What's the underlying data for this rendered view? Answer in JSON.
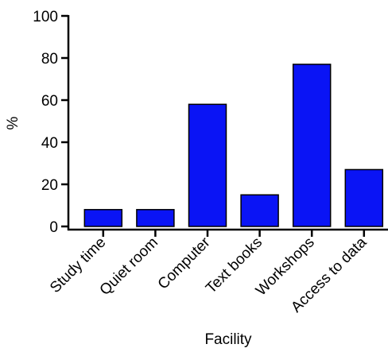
{
  "chart_data": {
    "type": "bar",
    "categories": [
      "Study time",
      "Quiet room",
      "Computer",
      "Text books",
      "Workshops",
      "Access to data"
    ],
    "values": [
      8,
      8,
      58,
      15,
      77,
      27
    ],
    "xlabel": "Facility",
    "ylabel": "%",
    "ylim": [
      0,
      100
    ],
    "yticks": [
      0,
      20,
      40,
      60,
      80,
      100
    ],
    "bar_color": "#0a14f5",
    "grid": false,
    "legend": "none"
  }
}
